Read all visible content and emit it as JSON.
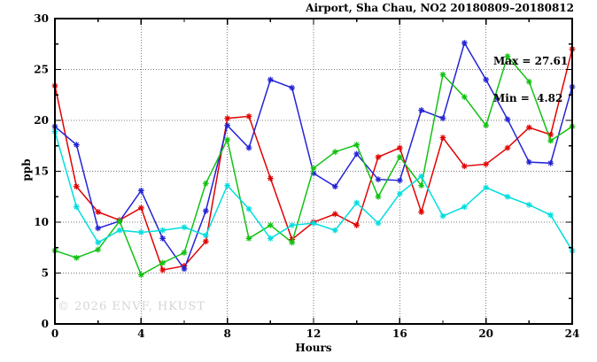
{
  "header": {
    "title": "Airport, Sha Chau, NO2 20180809–20180812"
  },
  "annotations": {
    "max_label": "Max = 27.61",
    "min_label": "Min =  4.82",
    "watermark": "© 2026 ENVF, HKUST"
  },
  "chart_data": {
    "type": "line",
    "title": "Airport, Sha Chau, NO2 20180809–20180812",
    "xlabel": "Hours",
    "ylabel": "ppb",
    "xlim": [
      0,
      24
    ],
    "ylim": [
      0,
      30
    ],
    "x_major_ticks": [
      0,
      4,
      8,
      12,
      16,
      20,
      24
    ],
    "x_minor_ticks": [
      2,
      6,
      10,
      14,
      18,
      22
    ],
    "y_major_ticks": [
      0,
      5,
      10,
      15,
      20,
      25,
      30
    ],
    "y_minor_ticks": [
      2.5,
      7.5,
      12.5,
      17.5,
      22.5,
      27.5
    ],
    "grid_x": [
      4,
      8,
      12,
      16,
      20
    ],
    "grid_y": [
      5,
      10,
      15,
      20,
      25
    ],
    "grid": true,
    "legend_position": "none",
    "marker": "asterisk",
    "stats": {
      "max": 27.61,
      "min": 4.82
    },
    "x": [
      0,
      1,
      2,
      3,
      4,
      5,
      6,
      7,
      8,
      9,
      10,
      11,
      12,
      13,
      14,
      15,
      16,
      17,
      18,
      19,
      20,
      21,
      22,
      23,
      24
    ],
    "series": [
      {
        "name": "red",
        "color": "#e30000",
        "values": [
          23.4,
          13.5,
          11.0,
          10.2,
          11.4,
          5.3,
          5.7,
          8.1,
          20.2,
          20.4,
          14.3,
          8.3,
          10.0,
          10.8,
          9.7,
          16.4,
          17.3,
          11.0,
          18.3,
          15.5,
          15.7,
          17.3,
          19.3,
          18.6,
          27.0
        ]
      },
      {
        "name": "blue",
        "color": "#2323d7",
        "values": [
          19.4,
          17.6,
          9.4,
          10.1,
          13.1,
          8.4,
          5.4,
          11.1,
          19.5,
          17.3,
          24.0,
          23.2,
          14.8,
          13.5,
          16.7,
          14.2,
          14.1,
          21.0,
          20.2,
          27.61,
          24.0,
          20.1,
          15.9,
          15.8,
          23.3
        ]
      },
      {
        "name": "green",
        "color": "#12c212",
        "values": [
          7.2,
          6.5,
          7.3,
          10.1,
          4.82,
          6.0,
          7.0,
          13.8,
          18.1,
          8.4,
          9.7,
          8.0,
          15.3,
          16.9,
          17.6,
          12.5,
          16.4,
          13.6,
          24.5,
          22.3,
          19.5,
          26.3,
          23.8,
          18.0,
          19.4
        ]
      },
      {
        "name": "cyan",
        "color": "#00dede",
        "values": [
          18.9,
          11.5,
          8.0,
          9.2,
          9.0,
          9.2,
          9.5,
          8.7,
          13.6,
          11.3,
          8.4,
          9.7,
          9.9,
          9.2,
          11.9,
          9.9,
          12.8,
          14.5,
          10.6,
          11.5,
          13.4,
          12.5,
          11.7,
          10.7,
          7.2
        ]
      }
    ],
    "axis_color": "#000000",
    "grid_color": "#7a7a7a",
    "watermark_color": "#d4d4d4"
  }
}
